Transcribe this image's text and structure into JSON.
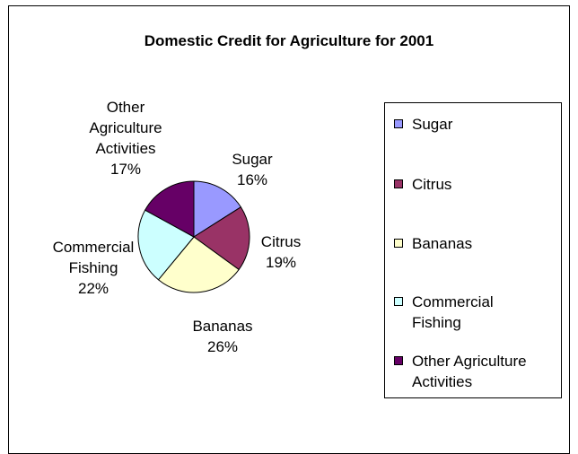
{
  "chart_data": {
    "type": "pie",
    "title": "Domestic Credit for Agriculture for 2001",
    "categories": [
      "Sugar",
      "Citrus",
      "Bananas",
      "Commercial Fishing",
      "Other Agriculture Activities"
    ],
    "values": [
      16,
      19,
      26,
      22,
      17
    ],
    "value_labels": [
      "16%",
      "19%",
      "26%",
      "22%",
      "17%"
    ],
    "slice_label_lines": [
      [
        "Sugar",
        "16%"
      ],
      [
        "Citrus",
        "19%"
      ],
      [
        "Bananas",
        "26%"
      ],
      [
        "Commercial",
        "Fishing",
        "22%"
      ],
      [
        "Other",
        "Agriculture",
        "Activities",
        "17%"
      ]
    ],
    "legend_label_lines": [
      [
        "Sugar"
      ],
      [
        "Citrus"
      ],
      [
        "Bananas"
      ],
      [
        "Commercial",
        "Fishing"
      ],
      [
        "Other Agriculture",
        "Activities"
      ]
    ],
    "colors": [
      "#9999ff",
      "#993366",
      "#ffffcc",
      "#ccffff",
      "#660066"
    ],
    "legend_position": "right"
  }
}
